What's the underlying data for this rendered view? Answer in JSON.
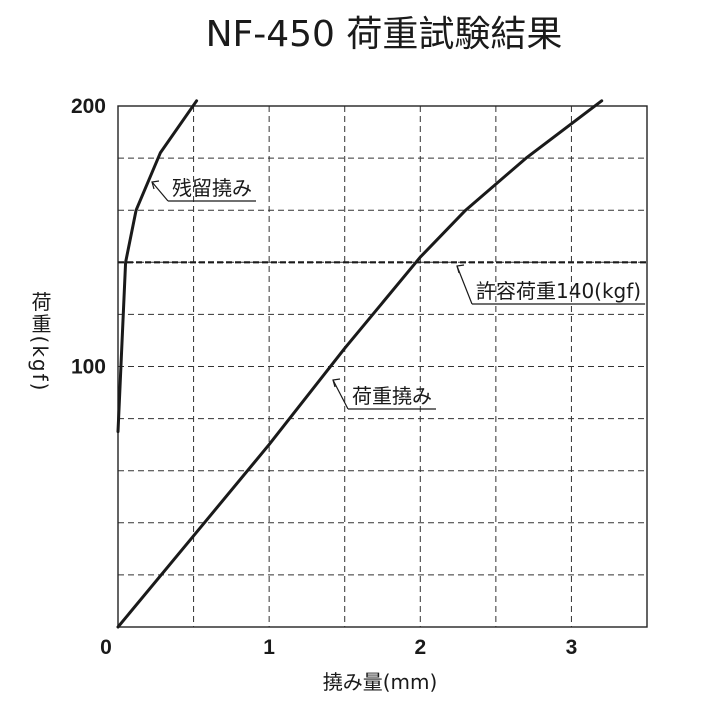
{
  "chart_data": {
    "type": "line",
    "title": "NF-450 荷重試験結果",
    "xlabel": "撓み量(mm)",
    "ylabel": "荷重(kgf)",
    "xlim": [
      0,
      3.5
    ],
    "ylim": [
      0,
      200
    ],
    "x_ticks": [
      0,
      1,
      2,
      3
    ],
    "y_ticks": [
      0,
      100,
      200
    ],
    "x_grid_step": 0.5,
    "y_grid_step": 20,
    "grid": true,
    "series": [
      {
        "name": "荷重撓み",
        "x": [
          0,
          0.5,
          1.0,
          1.5,
          2.0,
          2.3,
          2.7,
          3.2
        ],
        "y": [
          0,
          35,
          70,
          107,
          142,
          160,
          180,
          202
        ]
      },
      {
        "name": "残留撓み",
        "x": [
          0,
          0.05,
          0.12,
          0.28,
          0.52
        ],
        "y": [
          75,
          140,
          160,
          182,
          202
        ]
      }
    ],
    "reference_lines": [
      {
        "label": "許容荷重140(kgf)",
        "y": 140
      }
    ]
  }
}
